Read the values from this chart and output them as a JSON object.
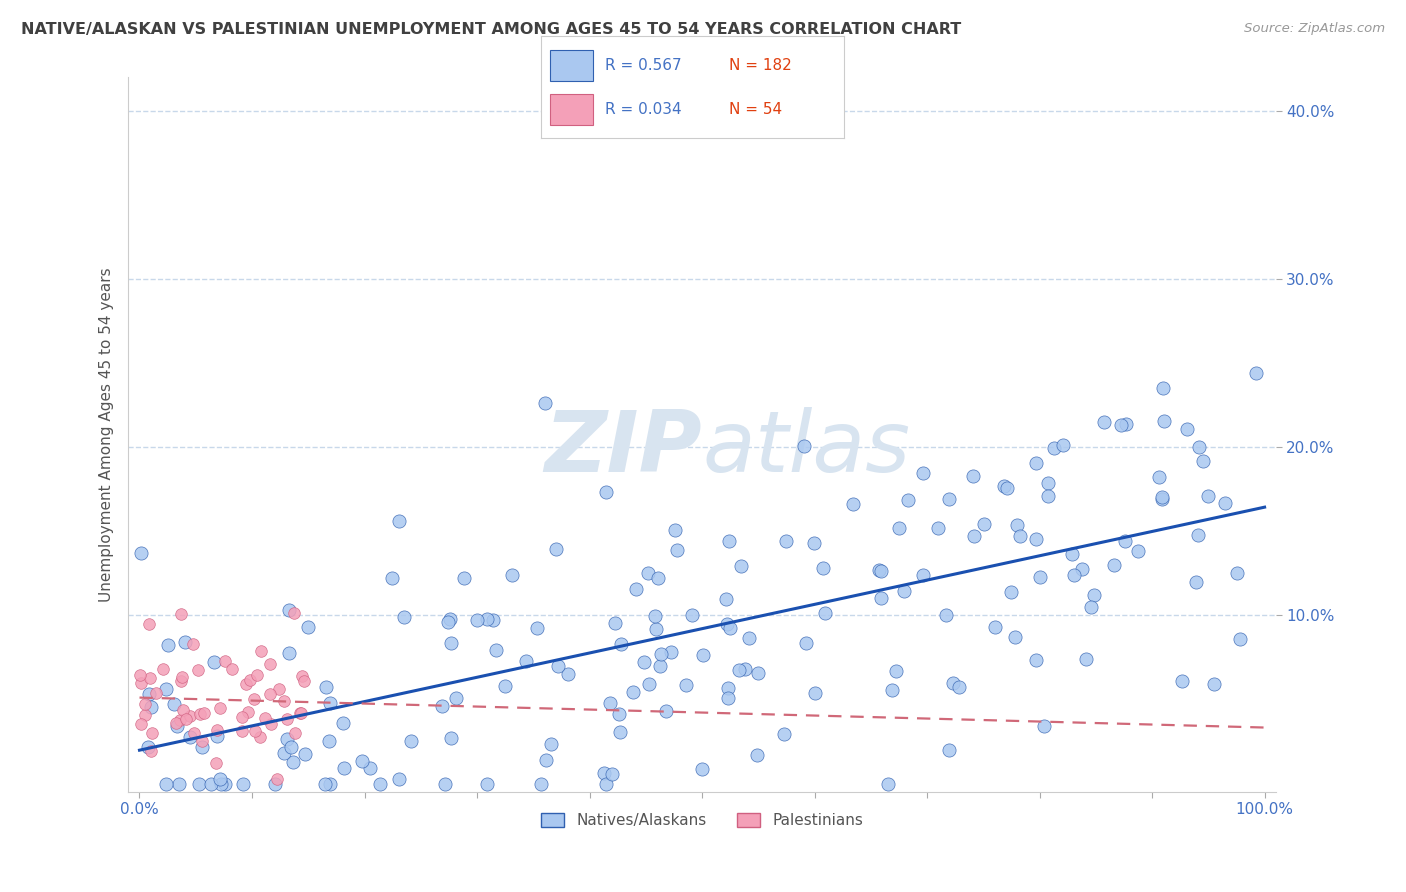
{
  "title": "NATIVE/ALASKAN VS PALESTINIAN UNEMPLOYMENT AMONG AGES 45 TO 54 YEARS CORRELATION CHART",
  "source": "Source: ZipAtlas.com",
  "ylabel": "Unemployment Among Ages 45 to 54 years",
  "legend_label1": "Natives/Alaskans",
  "legend_label2": "Palestinians",
  "R1": 0.567,
  "N1": 182,
  "R2": 0.034,
  "N2": 54,
  "color_blue_fill": "#aac8f0",
  "color_blue_edge": "#3060b0",
  "color_blue_line": "#1a50b0",
  "color_pink_fill": "#f4a0b8",
  "color_pink_edge": "#d06080",
  "color_pink_line": "#d06878",
  "watermark_color": "#d8e4f0",
  "background_color": "#ffffff",
  "title_color": "#404040",
  "axis_tick_color": "#4472c4",
  "grid_color": "#c8d8ea",
  "seed1": 7,
  "seed2": 13,
  "xlim": [
    0.0,
    1.0
  ],
  "ylim": [
    0.0,
    0.42
  ],
  "yticks": [
    0.1,
    0.2,
    0.3,
    0.4
  ],
  "ytick_labels": [
    "10.0%",
    "20.0%",
    "30.0%",
    "40.0%"
  ],
  "xticks": [
    0.0,
    0.1,
    0.2,
    0.3,
    0.4,
    0.5,
    0.6,
    0.7,
    0.8,
    0.9,
    1.0
  ],
  "xtick_labels_show": [
    "0.0%",
    "",
    "",
    "",
    "",
    "",
    "",
    "",
    "",
    "",
    "100.0%"
  ]
}
